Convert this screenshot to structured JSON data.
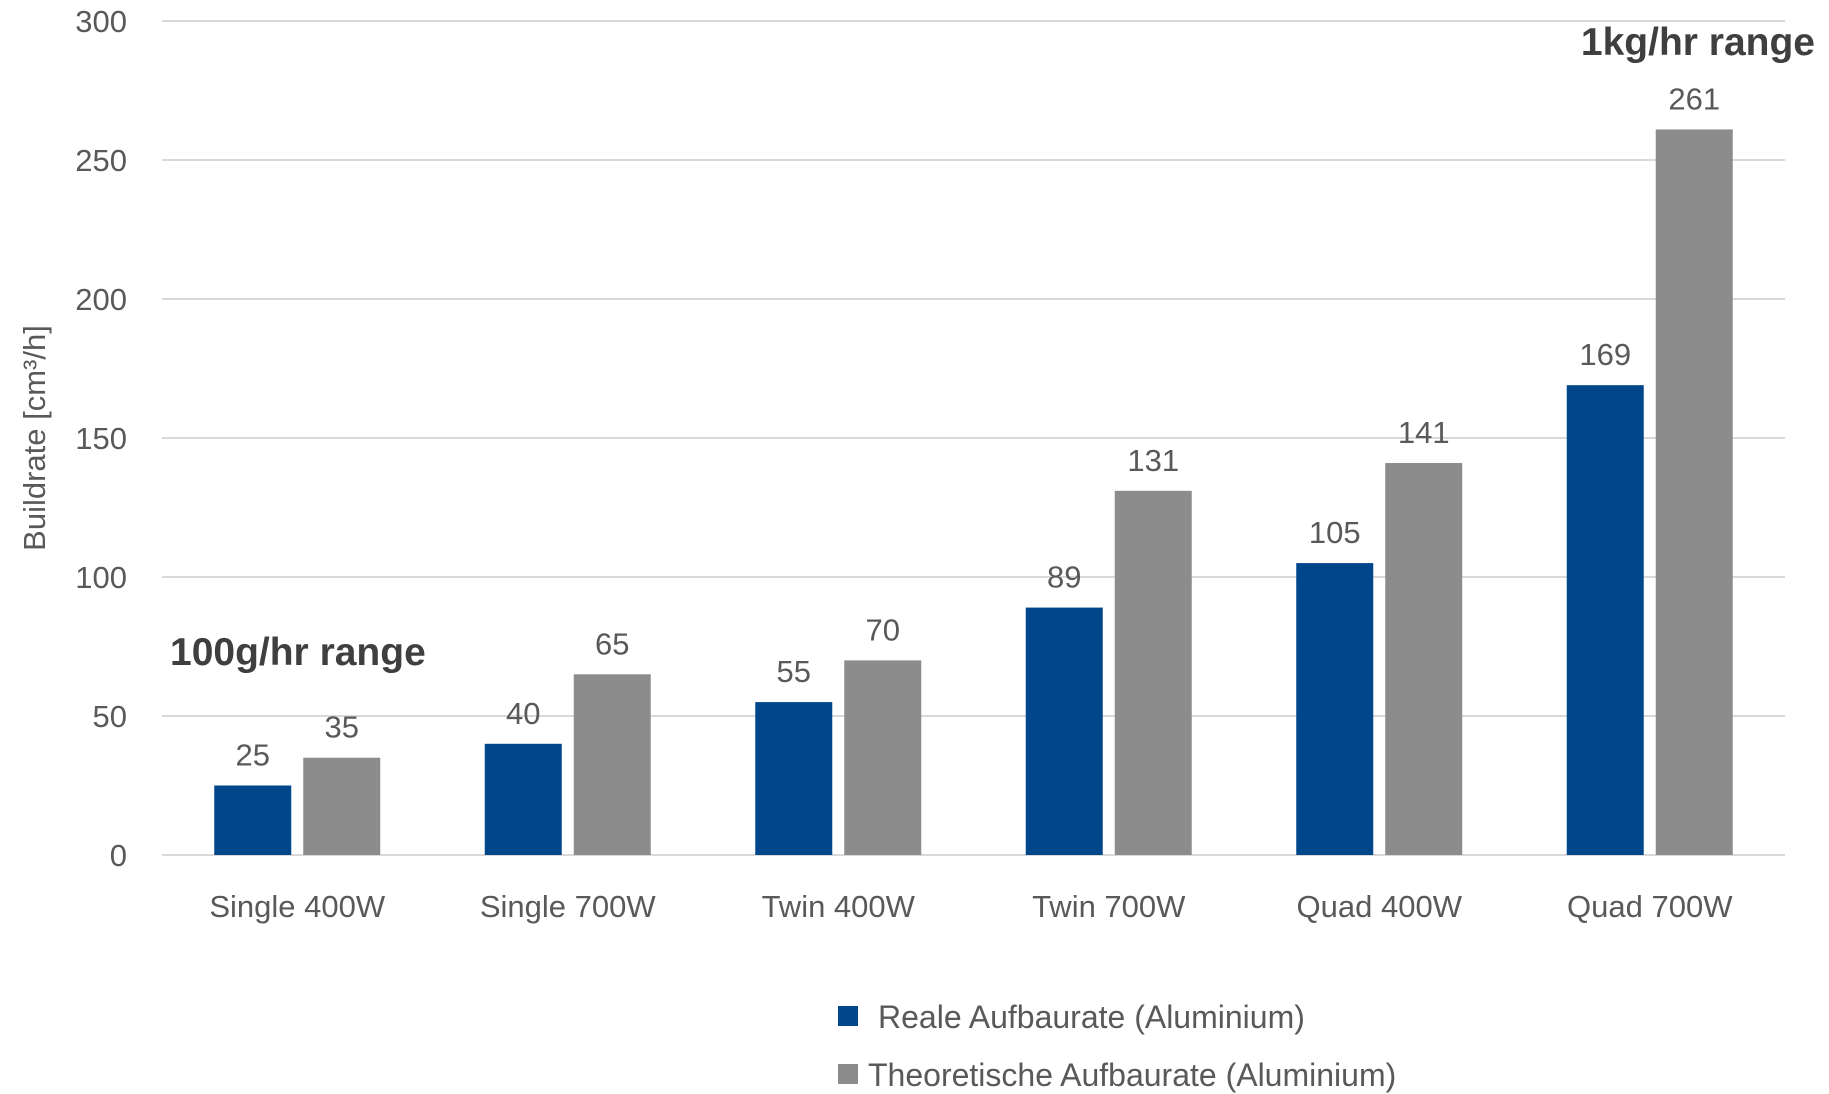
{
  "chart_data": {
    "type": "bar",
    "categories": [
      "Single 400W",
      "Single 700W",
      "Twin 400W",
      "Twin 700W",
      "Quad 400W",
      "Quad 700W"
    ],
    "series": [
      {
        "name": "Reale Aufbaurate (Aluminium)",
        "values": [
          25,
          40,
          55,
          89,
          105,
          169
        ],
        "color": "#00468b"
      },
      {
        "name": "Theoretische Aufbaurate (Aluminium)",
        "values": [
          35,
          65,
          70,
          131,
          141,
          261
        ],
        "color": "#8c8c8c"
      }
    ],
    "title": "",
    "xlabel": "",
    "ylabel": "Buildrate [cm³/h]",
    "ylim": [
      0,
      300
    ],
    "yticks": [
      0,
      50,
      100,
      150,
      200,
      250,
      300
    ],
    "grid": true,
    "legend_position": "bottom",
    "annotations": [
      {
        "text": "100g/hr range",
        "category": "Single 400W"
      },
      {
        "text": "1kg/hr range",
        "category": "Quad 700W"
      }
    ]
  },
  "colors": {
    "gridline": "#d9d9d9",
    "text": "#595959",
    "annotation_text": "#3f3f3f"
  }
}
